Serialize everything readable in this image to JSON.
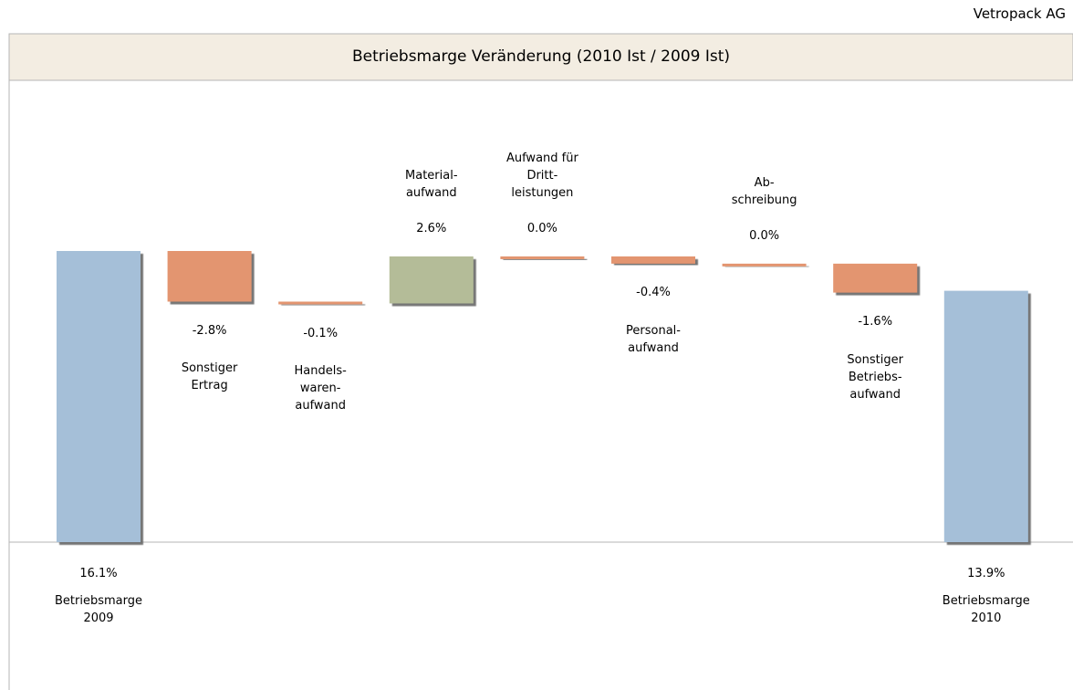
{
  "company": "Vetropack AG",
  "chart_data": {
    "type": "waterfall",
    "title": "Betriebsmarge Veränderung  (2010 Ist / 2009 Ist)",
    "categories": [
      "Betriebsmarge\n2009",
      "Sonstiger\nErtrag",
      "Handels-\nwaren-\naufwand",
      "Material-\naufwand",
      "Aufwand für\nDritt-\nleistungen",
      "Personal-\naufwand",
      "Ab-\nschreibung",
      "Sonstiger\nBetriebs-\naufwand",
      "Betriebsmarge\n2010"
    ],
    "values": [
      16.1,
      -2.8,
      -0.1,
      2.6,
      0.0,
      -0.4,
      0.0,
      -1.6,
      13.9
    ],
    "value_labels": [
      "16.1%",
      "-2.8%",
      "-0.1%",
      "2.6%",
      "0.0%",
      "-0.4%",
      "0.0%",
      "-1.6%",
      "13.9%"
    ],
    "colors": [
      "#a5bfd8",
      "#e3956f",
      "#e3956f",
      "#b4bc98",
      "#e3956f",
      "#e3956f",
      "#e3956f",
      "#e3956f",
      "#a5bfd8"
    ]
  }
}
